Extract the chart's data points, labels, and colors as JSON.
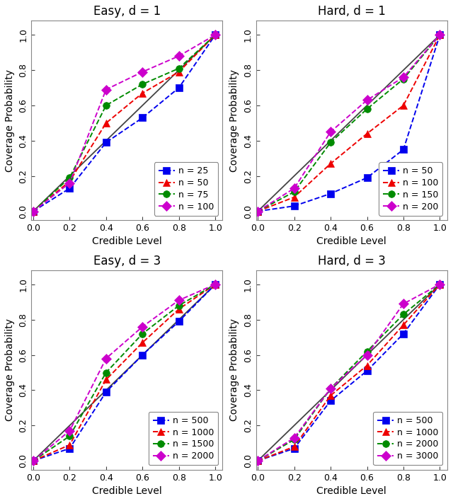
{
  "panels": [
    {
      "title": "Easy, d = 1",
      "row": 0,
      "col": 0,
      "series": [
        {
          "label": "n = 25",
          "color": "#0000EE",
          "marker": "s",
          "x": [
            0.0,
            0.2,
            0.4,
            0.6,
            0.8,
            1.0
          ],
          "y": [
            0.0,
            0.13,
            0.39,
            0.53,
            0.7,
            1.0
          ]
        },
        {
          "label": "n = 50",
          "color": "#EE0000",
          "marker": "^",
          "x": [
            0.0,
            0.2,
            0.4,
            0.6,
            0.8,
            1.0
          ],
          "y": [
            0.0,
            0.17,
            0.5,
            0.67,
            0.79,
            1.0
          ]
        },
        {
          "label": "n = 75",
          "color": "#008B00",
          "marker": "o",
          "x": [
            0.0,
            0.2,
            0.4,
            0.6,
            0.8,
            1.0
          ],
          "y": [
            0.0,
            0.19,
            0.6,
            0.72,
            0.81,
            1.0
          ]
        },
        {
          "label": "n = 100",
          "color": "#CC00CC",
          "marker": "D",
          "x": [
            0.0,
            0.2,
            0.4,
            0.6,
            0.8,
            1.0
          ],
          "y": [
            0.0,
            0.16,
            0.69,
            0.79,
            0.88,
            1.0
          ]
        }
      ],
      "legend_loc": "lower right"
    },
    {
      "title": "Hard, d = 1",
      "row": 0,
      "col": 1,
      "series": [
        {
          "label": "n = 50",
          "color": "#0000EE",
          "marker": "s",
          "x": [
            0.0,
            0.2,
            0.4,
            0.6,
            0.8,
            1.0
          ],
          "y": [
            0.0,
            0.03,
            0.1,
            0.19,
            0.35,
            1.0
          ]
        },
        {
          "label": "n = 100",
          "color": "#EE0000",
          "marker": "^",
          "x": [
            0.0,
            0.2,
            0.4,
            0.6,
            0.8,
            1.0
          ],
          "y": [
            0.0,
            0.08,
            0.27,
            0.44,
            0.6,
            1.0
          ]
        },
        {
          "label": "n = 150",
          "color": "#008B00",
          "marker": "o",
          "x": [
            0.0,
            0.2,
            0.4,
            0.6,
            0.8,
            1.0
          ],
          "y": [
            0.0,
            0.11,
            0.39,
            0.58,
            0.75,
            1.0
          ]
        },
        {
          "label": "n = 200",
          "color": "#CC00CC",
          "marker": "D",
          "x": [
            0.0,
            0.2,
            0.4,
            0.6,
            0.8,
            1.0
          ],
          "y": [
            0.0,
            0.13,
            0.45,
            0.63,
            0.76,
            1.0
          ]
        }
      ],
      "legend_loc": "lower right"
    },
    {
      "title": "Easy, d = 3",
      "row": 1,
      "col": 0,
      "series": [
        {
          "label": "n = 500",
          "color": "#0000EE",
          "marker": "s",
          "x": [
            0.0,
            0.2,
            0.4,
            0.6,
            0.8,
            1.0
          ],
          "y": [
            0.0,
            0.07,
            0.39,
            0.6,
            0.79,
            1.0
          ]
        },
        {
          "label": "n = 1000",
          "color": "#EE0000",
          "marker": "^",
          "x": [
            0.0,
            0.2,
            0.4,
            0.6,
            0.8,
            1.0
          ],
          "y": [
            0.0,
            0.09,
            0.46,
            0.67,
            0.86,
            1.0
          ]
        },
        {
          "label": "n = 1500",
          "color": "#008B00",
          "marker": "o",
          "x": [
            0.0,
            0.2,
            0.4,
            0.6,
            0.8,
            1.0
          ],
          "y": [
            0.0,
            0.14,
            0.5,
            0.72,
            0.88,
            1.0
          ]
        },
        {
          "label": "n = 2000",
          "color": "#CC00CC",
          "marker": "D",
          "x": [
            0.0,
            0.2,
            0.4,
            0.6,
            0.8,
            1.0
          ],
          "y": [
            0.0,
            0.17,
            0.58,
            0.76,
            0.91,
            1.0
          ]
        }
      ],
      "legend_loc": "lower right"
    },
    {
      "title": "Hard, d = 3",
      "row": 1,
      "col": 1,
      "series": [
        {
          "label": "n = 500",
          "color": "#0000EE",
          "marker": "s",
          "x": [
            0.0,
            0.2,
            0.4,
            0.6,
            0.8,
            1.0
          ],
          "y": [
            0.0,
            0.07,
            0.34,
            0.51,
            0.72,
            1.0
          ]
        },
        {
          "label": "n = 1000",
          "color": "#EE0000",
          "marker": "^",
          "x": [
            0.0,
            0.2,
            0.4,
            0.6,
            0.8,
            1.0
          ],
          "y": [
            0.0,
            0.08,
            0.37,
            0.54,
            0.77,
            1.0
          ]
        },
        {
          "label": "n = 2000",
          "color": "#008B00",
          "marker": "o",
          "x": [
            0.0,
            0.2,
            0.4,
            0.6,
            0.8,
            1.0
          ],
          "y": [
            0.0,
            0.12,
            0.41,
            0.62,
            0.83,
            1.0
          ]
        },
        {
          "label": "n = 3000",
          "color": "#CC00CC",
          "marker": "D",
          "x": [
            0.0,
            0.2,
            0.4,
            0.6,
            0.8,
            1.0
          ],
          "y": [
            0.0,
            0.13,
            0.41,
            0.6,
            0.89,
            1.0
          ]
        }
      ],
      "legend_loc": "lower right"
    }
  ],
  "diagonal_color": "#444444",
  "background_color": "#FFFFFF",
  "panel_bg": "#FFFFFF",
  "xlabel": "Credible Level",
  "ylabel": "Coverage Probability",
  "xticks": [
    0.0,
    0.2,
    0.4,
    0.6,
    0.8,
    1.0
  ],
  "yticks": [
    0.0,
    0.2,
    0.4,
    0.6,
    0.8,
    1.0
  ],
  "title_fontsize": 12,
  "label_fontsize": 10,
  "tick_fontsize": 9,
  "legend_fontsize": 9,
  "marker_size": 7,
  "linewidth": 1.4
}
